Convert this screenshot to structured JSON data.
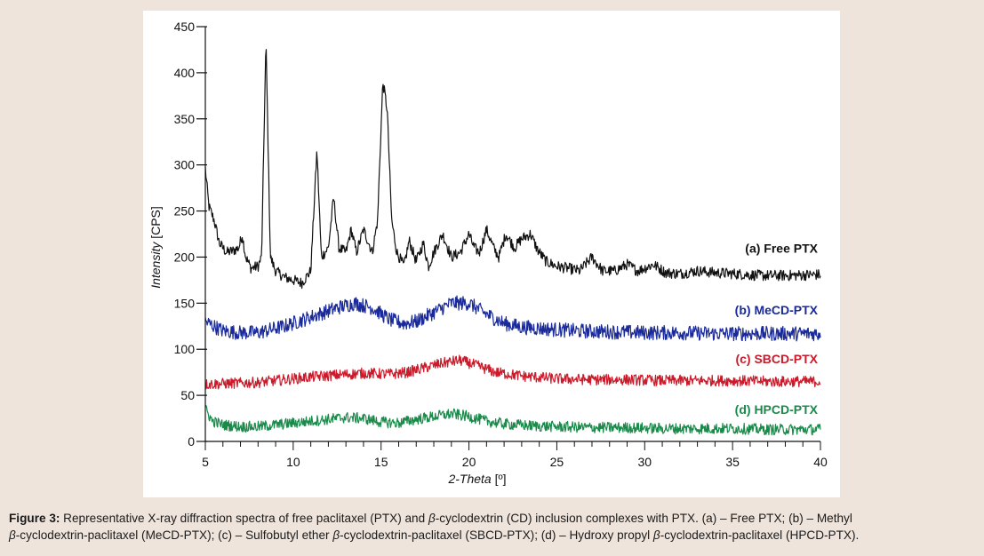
{
  "chart_data": {
    "type": "line",
    "xlabel_italic": "2-Theta",
    "xlabel_unit": " [º]",
    "ylabel_italic": "Intensity",
    "ylabel_unit": " [CPS]",
    "xlim": [
      5,
      40
    ],
    "ylim": [
      0,
      450
    ],
    "x_ticks": [
      5,
      10,
      15,
      20,
      25,
      30,
      35,
      40
    ],
    "y_ticks": [
      0,
      50,
      100,
      150,
      200,
      250,
      300,
      350,
      400,
      450
    ],
    "series": [
      {
        "name": "(a) Free PTX",
        "color": "#111111",
        "baseline": 180,
        "noise": 6,
        "points": [
          [
            5.0,
            296
          ],
          [
            5.2,
            255
          ],
          [
            5.5,
            240
          ],
          [
            5.8,
            215
          ],
          [
            6.2,
            205
          ],
          [
            6.6,
            207
          ],
          [
            6.9,
            210
          ],
          [
            7.1,
            224
          ],
          [
            7.3,
            200
          ],
          [
            7.6,
            188
          ],
          [
            8.0,
            190
          ],
          [
            8.2,
            200
          ],
          [
            8.45,
            435
          ],
          [
            8.7,
            200
          ],
          [
            9.0,
            185
          ],
          [
            9.5,
            178
          ],
          [
            10.0,
            175
          ],
          [
            10.5,
            172
          ],
          [
            11.0,
            185
          ],
          [
            11.35,
            317
          ],
          [
            11.6,
            200
          ],
          [
            12.0,
            210
          ],
          [
            12.3,
            265
          ],
          [
            12.6,
            210
          ],
          [
            13.0,
            205
          ],
          [
            13.3,
            230
          ],
          [
            13.6,
            205
          ],
          [
            14.0,
            230
          ],
          [
            14.5,
            205
          ],
          [
            14.8,
            240
          ],
          [
            15.1,
            390
          ],
          [
            15.35,
            360
          ],
          [
            15.6,
            240
          ],
          [
            15.9,
            205
          ],
          [
            16.3,
            190
          ],
          [
            16.6,
            218
          ],
          [
            17.0,
            195
          ],
          [
            17.4,
            215
          ],
          [
            17.7,
            190
          ],
          [
            18.0,
            205
          ],
          [
            18.5,
            225
          ],
          [
            19.0,
            200
          ],
          [
            19.5,
            205
          ],
          [
            20.0,
            225
          ],
          [
            20.3,
            210
          ],
          [
            20.6,
            205
          ],
          [
            21.0,
            230
          ],
          [
            21.4,
            210
          ],
          [
            21.7,
            200
          ],
          [
            22.1,
            225
          ],
          [
            22.6,
            210
          ],
          [
            23.0,
            220
          ],
          [
            23.5,
            225
          ],
          [
            23.9,
            208
          ],
          [
            24.4,
            195
          ],
          [
            25.0,
            190
          ],
          [
            25.6,
            188
          ],
          [
            26.3,
            185
          ],
          [
            27.0,
            200
          ],
          [
            27.6,
            185
          ],
          [
            28.3,
            185
          ],
          [
            29.0,
            192
          ],
          [
            29.6,
            185
          ],
          [
            30.5,
            192
          ],
          [
            31.2,
            183
          ],
          [
            32.0,
            182
          ],
          [
            33.0,
            185
          ],
          [
            34.0,
            183
          ],
          [
            35.0,
            182
          ],
          [
            36.5,
            180
          ],
          [
            38.0,
            180
          ],
          [
            40.0,
            181
          ]
        ]
      },
      {
        "name": "(b) MeCD-PTX",
        "color": "#1a2a9a",
        "baseline": 123,
        "noise": 8,
        "points": [
          [
            5.0,
            130
          ],
          [
            6.0,
            120
          ],
          [
            7.0,
            118
          ],
          [
            8.0,
            118
          ],
          [
            9.5,
            125
          ],
          [
            11.0,
            135
          ],
          [
            12.5,
            145
          ],
          [
            13.5,
            150
          ],
          [
            14.5,
            145
          ],
          [
            15.5,
            132
          ],
          [
            16.3,
            128
          ],
          [
            17.0,
            130
          ],
          [
            18.0,
            140
          ],
          [
            19.0,
            150
          ],
          [
            20.0,
            150
          ],
          [
            21.0,
            138
          ],
          [
            22.0,
            128
          ],
          [
            23.0,
            124
          ],
          [
            24.5,
            122
          ],
          [
            26.0,
            120
          ],
          [
            28.0,
            119
          ],
          [
            30.0,
            118
          ],
          [
            32.0,
            118
          ],
          [
            34.0,
            117
          ],
          [
            36.0,
            117
          ],
          [
            38.0,
            117
          ],
          [
            40.0,
            117
          ]
        ]
      },
      {
        "name": "(c) SBCD-PTX",
        "color": "#cc1a2a",
        "baseline": 68,
        "noise": 6,
        "points": [
          [
            5.0,
            62
          ],
          [
            6.5,
            63
          ],
          [
            8.0,
            64
          ],
          [
            9.5,
            67
          ],
          [
            11.0,
            70
          ],
          [
            12.5,
            72
          ],
          [
            14.0,
            74
          ],
          [
            15.5,
            73
          ],
          [
            16.5,
            75
          ],
          [
            17.5,
            80
          ],
          [
            18.5,
            85
          ],
          [
            19.5,
            88
          ],
          [
            20.5,
            82
          ],
          [
            21.5,
            75
          ],
          [
            23.0,
            71
          ],
          [
            25.0,
            68
          ],
          [
            27.0,
            67
          ],
          [
            29.0,
            67
          ],
          [
            31.0,
            66
          ],
          [
            33.0,
            66
          ],
          [
            35.0,
            66
          ],
          [
            37.0,
            65
          ],
          [
            40.0,
            65
          ]
        ]
      },
      {
        "name": "(d) HPCD-PTX",
        "color": "#1a8a4a",
        "baseline": 18,
        "noise": 6,
        "points": [
          [
            5.0,
            35
          ],
          [
            5.4,
            22
          ],
          [
            6.0,
            18
          ],
          [
            7.0,
            16
          ],
          [
            8.0,
            16
          ],
          [
            9.0,
            18
          ],
          [
            10.0,
            20
          ],
          [
            11.0,
            22
          ],
          [
            12.0,
            24
          ],
          [
            13.0,
            26
          ],
          [
            14.0,
            25
          ],
          [
            15.0,
            21
          ],
          [
            16.0,
            20
          ],
          [
            17.0,
            24
          ],
          [
            18.0,
            27
          ],
          [
            19.0,
            30
          ],
          [
            20.0,
            27
          ],
          [
            21.0,
            22
          ],
          [
            22.0,
            19
          ],
          [
            23.5,
            17
          ],
          [
            25.0,
            16
          ],
          [
            27.0,
            15
          ],
          [
            29.0,
            15
          ],
          [
            31.0,
            14
          ],
          [
            33.0,
            14
          ],
          [
            35.0,
            14
          ],
          [
            37.0,
            13
          ],
          [
            40.0,
            13
          ]
        ]
      }
    ]
  },
  "caption": {
    "label": "Figure 3:",
    "part1": " Representative X-ray diffraction spectra of free paclitaxel (PTX) and ",
    "beta": "β",
    "part2": "-cyclodextrin (CD) inclusion complexes with PTX. (a) – Free PTX; (b) – Methyl ",
    "part3": "-cyclodextrin-paclitaxel (MeCD-PTX); (c) – Sulfobutyl ether ",
    "part4": "-cyclodextrin-paclitaxel (SBCD-PTX); (d) – Hydroxy propyl ",
    "part5": "-cyclodextrin-paclitaxel (HPCD-PTX)."
  }
}
